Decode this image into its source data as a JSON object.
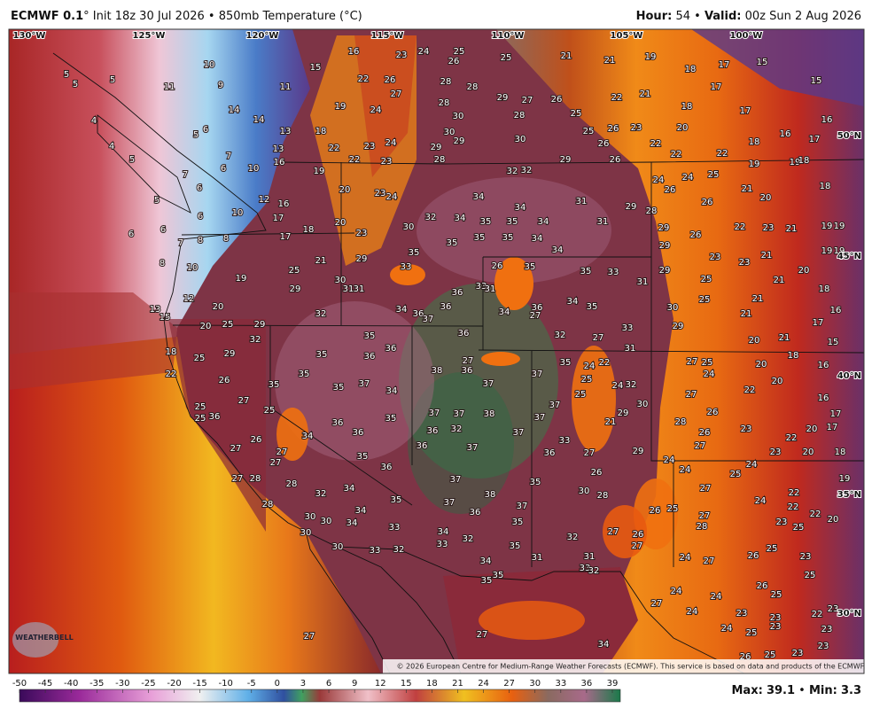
{
  "header": {
    "model": "ECMWF 0.1",
    "subtitle": "° Init 18z 30 Jul 2026 • 850mb Temperature (°C)",
    "hour_label": "Hour:",
    "hour": "54 •",
    "valid_label": "Valid:",
    "valid": "00z Sun 2 Aug 2026"
  },
  "map": {
    "longitudes": [
      "130°W",
      "125°W",
      "120°W",
      "115°W",
      "110°W",
      "105°W",
      "100°W"
    ],
    "latitudes": [
      "50°N",
      "45°N",
      "40°N",
      "35°N",
      "30°N"
    ],
    "values": [
      5,
      5,
      5,
      10,
      9,
      11,
      11,
      15,
      16,
      23,
      24,
      25,
      26,
      25,
      21,
      21,
      19,
      18,
      17,
      15,
      15,
      17,
      22,
      26,
      28,
      28,
      29,
      27,
      26,
      25,
      22,
      21,
      18,
      17,
      16,
      4,
      4,
      5,
      5,
      6,
      14,
      14,
      13,
      13,
      19,
      18,
      24,
      27,
      28,
      30,
      28,
      30,
      29,
      29,
      28,
      30,
      25,
      26,
      23,
      22,
      20,
      18,
      16,
      17,
      26,
      26,
      29,
      32,
      32,
      34,
      34,
      32,
      34,
      35,
      35,
      34,
      31,
      31,
      29,
      28,
      29,
      26,
      22,
      22,
      19,
      19,
      18,
      24,
      26,
      24,
      25,
      21,
      20,
      18,
      26,
      7,
      6,
      10,
      16,
      19,
      22,
      22,
      23,
      24,
      23,
      23,
      24,
      20,
      20,
      18,
      17,
      12,
      16,
      17,
      10,
      6,
      6,
      5,
      6,
      6,
      7,
      7,
      8,
      8,
      8,
      10,
      12,
      13,
      15,
      30,
      23,
      35,
      35,
      35,
      34,
      34,
      22,
      23,
      21,
      19,
      19,
      19,
      19,
      29,
      21,
      23,
      23,
      21,
      20,
      18,
      21,
      21,
      29,
      33,
      35,
      26,
      35,
      35,
      33,
      31,
      29,
      25,
      25,
      21,
      30,
      31,
      31,
      19,
      29,
      36,
      33,
      31,
      20,
      32,
      34,
      36,
      37,
      36,
      34,
      36,
      27,
      34,
      35,
      30,
      25,
      29,
      20,
      25,
      29,
      32,
      35,
      36,
      36,
      32,
      27,
      33,
      31,
      20,
      21,
      17,
      16,
      15,
      18,
      18,
      25,
      29,
      35,
      36,
      35,
      35,
      35,
      37,
      34,
      38,
      27,
      36,
      37,
      37,
      35,
      24,
      22,
      25,
      24,
      32,
      27,
      25,
      24,
      27,
      20,
      20,
      16,
      22,
      22,
      26,
      27,
      25,
      25,
      25,
      36,
      36,
      36,
      35,
      37,
      37,
      38,
      36,
      32,
      37,
      37,
      37,
      25,
      21,
      29,
      30,
      28,
      26,
      23,
      16,
      17,
      17,
      20,
      22,
      23,
      20,
      18,
      26,
      27,
      34,
      26,
      27,
      27,
      27,
      36,
      37,
      33,
      36,
      27,
      29,
      24,
      24,
      25,
      24,
      35,
      36,
      27,
      28,
      28,
      32,
      34,
      26,
      35,
      37,
      38,
      30,
      28,
      27,
      22,
      19,
      28,
      35,
      37,
      36,
      37,
      26,
      25,
      27,
      24,
      22,
      22,
      20,
      34,
      34,
      30,
      30,
      33,
      35,
      28,
      23,
      25,
      30,
      34,
      33,
      32,
      27,
      26,
      27,
      32,
      30,
      33,
      32,
      35,
      31,
      31,
      33,
      32,
      24,
      27,
      26,
      25,
      23,
      25,
      34,
      35,
      35,
      26,
      25,
      24,
      27,
      24,
      23,
      23,
      22,
      23,
      24,
      24,
      25,
      23,
      23,
      26,
      25,
      23,
      23,
      27,
      27,
      34
    ],
    "logo": "WEATHERBELL",
    "credit": "© 2026 European Centre for Medium-Range Weather Forecasts (ECMWF). This service is based on data and products of the ECMWF."
  },
  "legend": {
    "ticks": [
      -50,
      -45,
      -40,
      -35,
      -30,
      -25,
      -20,
      -15,
      -10,
      -5,
      0,
      3,
      6,
      9,
      12,
      15,
      18,
      21,
      24,
      27,
      30,
      33,
      36,
      39
    ]
  },
  "stats": {
    "max_label": "Max:",
    "max": 39.1,
    "separator": "•",
    "min_label": "Min:",
    "min": 3.3
  }
}
